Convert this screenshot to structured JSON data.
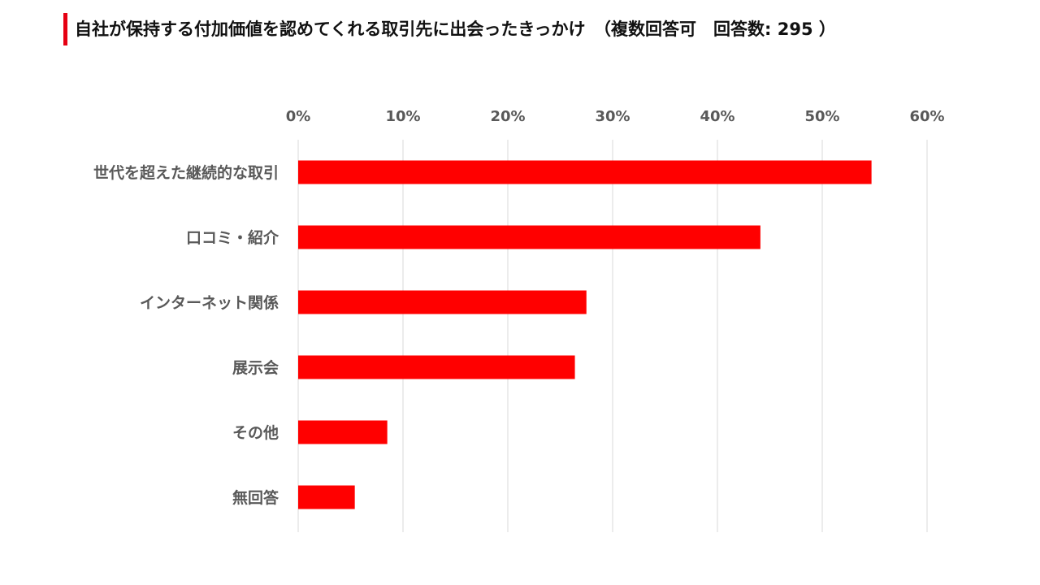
{
  "title": "自社が保持する付加価値を認めてくれる取引先に出会ったきっかけ　（複数回答可　回答数: 295 ）",
  "chart_data": {
    "type": "bar",
    "orientation": "horizontal",
    "title": "自社が保持する付加価値を認めてくれる取引先に出会ったきっかけ　（複数回答可　回答数: 295 ）",
    "categories": [
      "世代を超えた継続的な取引",
      "口コミ・紹介",
      "インターネット関係",
      "展示会",
      "その他",
      "無回答"
    ],
    "values": [
      0.547,
      0.441,
      0.275,
      0.264,
      0.085,
      0.054
    ],
    "xlim": [
      0,
      0.6
    ],
    "ticks": [
      0,
      0.1,
      0.2,
      0.3,
      0.4,
      0.5,
      0.6
    ],
    "tick_labels": [
      "0%",
      "10%",
      "20%",
      "30%",
      "40%",
      "50%",
      "60%"
    ],
    "axis_position": "top",
    "grid": true,
    "bar_color": "#ff0000",
    "gridline_color": "#d9d9d9",
    "legend": "none"
  },
  "colors": {
    "accent": "#e60012",
    "bar": "#ff0000",
    "text": "#595959",
    "grid": "#d9d9d9"
  }
}
